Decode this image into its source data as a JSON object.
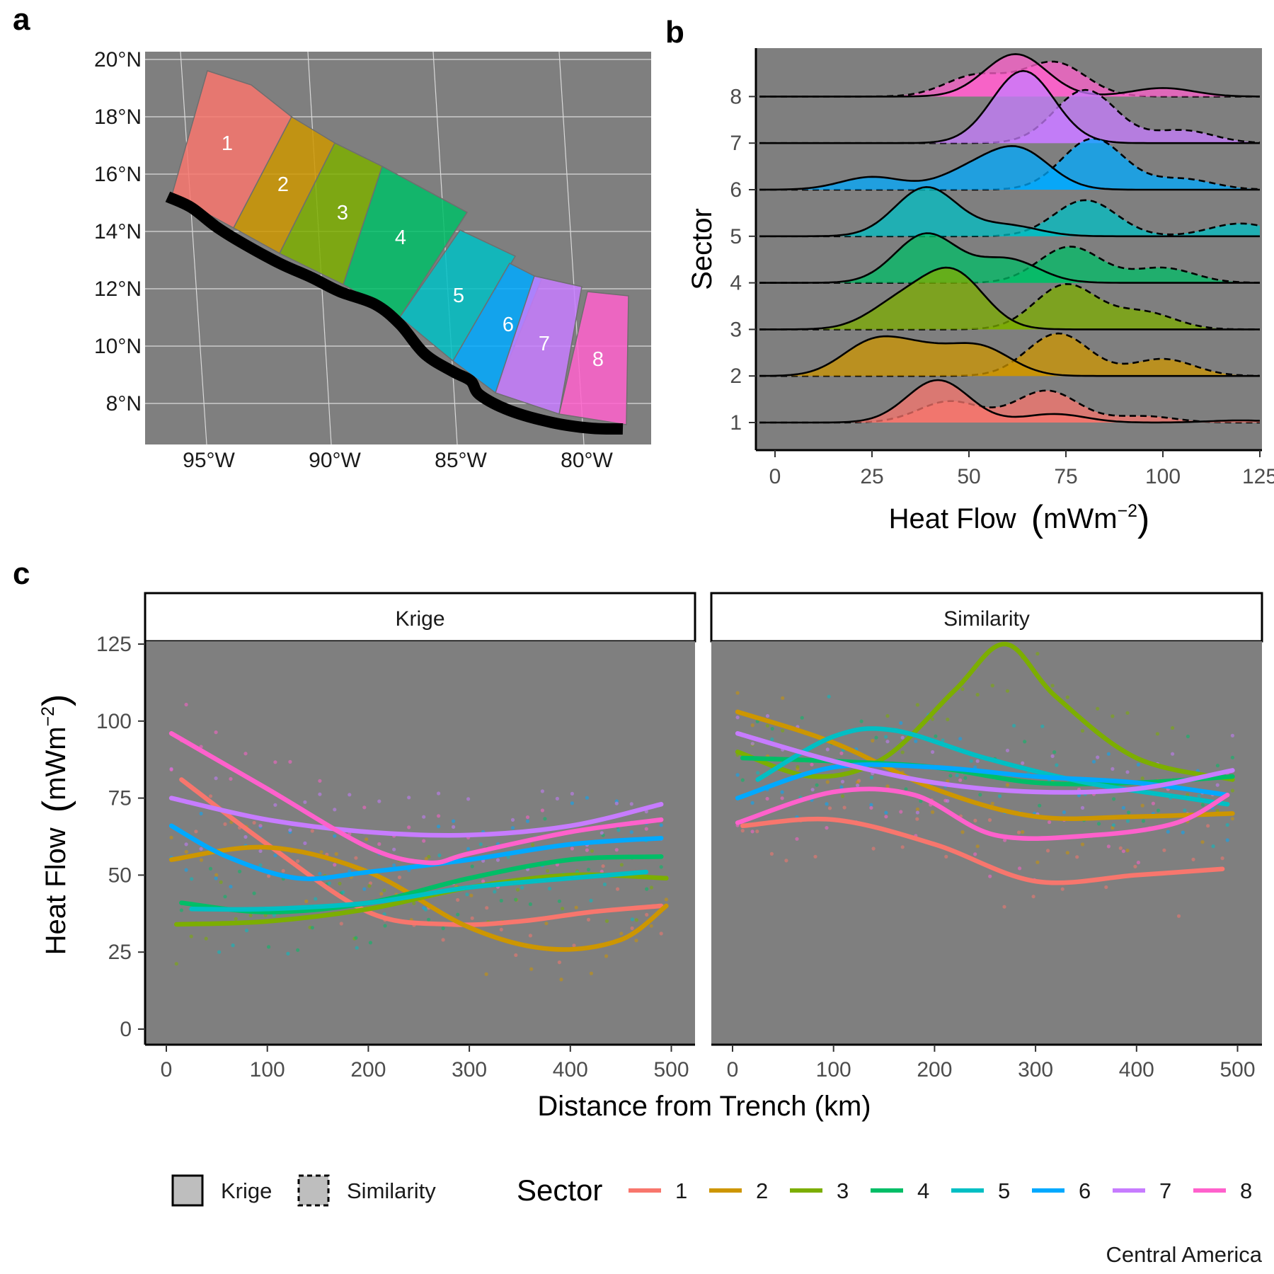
{
  "panels": {
    "a": "a",
    "b": "b",
    "c": "c"
  },
  "caption": "Central America",
  "colors": {
    "panel_bg": "#7f7f7f",
    "grid": "#d9d9d9",
    "trench": "#000000",
    "sectors": [
      "#f8766d",
      "#cd9600",
      "#7cae00",
      "#00be67",
      "#00bfc4",
      "#00a9ff",
      "#c77cff",
      "#ff61cc"
    ]
  },
  "map": {
    "lat_labels": [
      "20°N",
      "18°N",
      "16°N",
      "14°N",
      "12°N",
      "10°N",
      "8°N"
    ],
    "lon_labels": [
      "95°W",
      "90°W",
      "85°W",
      "80°W"
    ],
    "sector_labels": [
      "1",
      "2",
      "3",
      "4",
      "5",
      "6",
      "7",
      "8"
    ]
  },
  "chart_data": [
    {
      "panel": "b",
      "type": "ridgeline-density",
      "xlabel": "Heat Flow",
      "xlabel_units": "mWm",
      "xlabel_exp": "−2",
      "ylabel": "Sector",
      "xlim": [
        0,
        125
      ],
      "x_ticks": [
        "0",
        "25",
        "50",
        "75",
        "100",
        "125"
      ],
      "categories": [
        "1",
        "2",
        "3",
        "4",
        "5",
        "6",
        "7",
        "8"
      ],
      "line_styles": {
        "Krige": "solid",
        "Similarity": "dashed"
      },
      "series": [
        {
          "sector": "1",
          "krige_peaks": [
            [
              42,
              1.0
            ],
            [
              72,
              0.2
            ],
            [
              120,
              0.05
            ]
          ],
          "similarity_peaks": [
            [
              45,
              0.5
            ],
            [
              70,
              0.75
            ],
            [
              95,
              0.15
            ]
          ]
        },
        {
          "sector": "2",
          "krige_peaks": [
            [
              25,
              0.75
            ],
            [
              38,
              0.5
            ],
            [
              53,
              0.65
            ]
          ],
          "similarity_peaks": [
            [
              73,
              1.0
            ],
            [
              100,
              0.4
            ]
          ]
        },
        {
          "sector": "3",
          "krige_peaks": [
            [
              32,
              0.6
            ],
            [
              46,
              1.3
            ]
          ],
          "similarity_peaks": [
            [
              75,
              1.05
            ],
            [
              95,
              0.4
            ]
          ]
        },
        {
          "sector": "4",
          "krige_peaks": [
            [
              39,
              1.15
            ],
            [
              60,
              0.55
            ]
          ],
          "similarity_peaks": [
            [
              76,
              0.85
            ],
            [
              100,
              0.35
            ]
          ]
        },
        {
          "sector": "5",
          "krige_peaks": [
            [
              39,
              1.15
            ],
            [
              60,
              0.25
            ]
          ],
          "similarity_peaks": [
            [
              80,
              0.85
            ],
            [
              120,
              0.3
            ]
          ]
        },
        {
          "sector": "6",
          "krige_peaks": [
            [
              25,
              0.3
            ],
            [
              50,
              0.4
            ],
            [
              63,
              0.9
            ]
          ],
          "similarity_peaks": [
            [
              82,
              1.2
            ],
            [
              105,
              0.25
            ]
          ]
        },
        {
          "sector": "7",
          "krige_peaks": [
            [
              64,
              1.7
            ]
          ],
          "similarity_peaks": [
            [
              80,
              1.25
            ],
            [
              105,
              0.3
            ]
          ]
        },
        {
          "sector": "8",
          "krige_peaks": [
            [
              62,
              1.0
            ],
            [
              100,
              0.2
            ]
          ],
          "similarity_peaks": [
            [
              52,
              0.5
            ],
            [
              72,
              0.8
            ]
          ]
        }
      ]
    },
    {
      "panel": "c",
      "type": "line",
      "xlabel": "Distance from Trench (km)",
      "ylabel": "Heat Flow",
      "ylabel_units": "mWm",
      "ylabel_exp": "−2",
      "xlim": [
        -20,
        520
      ],
      "ylim": [
        -7,
        140
      ],
      "x_ticks": [
        "0",
        "100",
        "200",
        "300",
        "400",
        "500"
      ],
      "y_ticks": [
        "0",
        "25",
        "50",
        "75",
        "100",
        "125"
      ],
      "facets": [
        {
          "name": "Krige",
          "series": [
            {
              "name": "1",
              "x": [
                15,
                100,
                200,
                280,
                350,
                420,
                490
              ],
              "y": [
                81,
                60,
                38,
                34,
                35,
                38,
                40
              ]
            },
            {
              "name": "2",
              "x": [
                5,
                100,
                200,
                300,
                380,
                450,
                495
              ],
              "y": [
                55,
                59,
                51,
                33,
                26,
                29,
                40
              ]
            },
            {
              "name": "3",
              "x": [
                10,
                100,
                200,
                300,
                400,
                495
              ],
              "y": [
                34,
                35,
                39,
                46,
                50,
                49
              ]
            },
            {
              "name": "4",
              "x": [
                15,
                100,
                200,
                300,
                400,
                490
              ],
              "y": [
                41,
                38,
                41,
                49,
                55,
                56
              ]
            },
            {
              "name": "5",
              "x": [
                25,
                100,
                200,
                300,
                400,
                475
              ],
              "y": [
                39,
                39,
                41,
                46,
                49,
                51
              ]
            },
            {
              "name": "6",
              "x": [
                5,
                60,
                130,
                200,
                300,
                400,
                490
              ],
              "y": [
                66,
                56,
                49,
                51,
                55,
                60,
                62
              ]
            },
            {
              "name": "7",
              "x": [
                5,
                100,
                200,
                300,
                400,
                490
              ],
              "y": [
                75,
                68,
                64,
                63,
                66,
                73
              ]
            },
            {
              "name": "8",
              "x": [
                5,
                100,
                200,
                260,
                300,
                400,
                490
              ],
              "y": [
                96,
                78,
                59,
                54,
                57,
                64,
                68
              ]
            }
          ]
        },
        {
          "name": "Similarity",
          "series": [
            {
              "name": "1",
              "x": [
                10,
                100,
                200,
                300,
                400,
                485
              ],
              "y": [
                66,
                68,
                60,
                48,
                50,
                52
              ]
            },
            {
              "name": "2",
              "x": [
                5,
                100,
                200,
                300,
                400,
                495
              ],
              "y": [
                103,
                93,
                78,
                69,
                69,
                70
              ]
            },
            {
              "name": "3",
              "x": [
                5,
                80,
                150,
                220,
                270,
                320,
                400,
                495
              ],
              "y": [
                90,
                82,
                88,
                110,
                125,
                108,
                88,
                81
              ]
            },
            {
              "name": "4",
              "x": [
                10,
                100,
                200,
                300,
                400,
                495
              ],
              "y": [
                88,
                87,
                85,
                80,
                80,
                82
              ]
            },
            {
              "name": "5",
              "x": [
                25,
                100,
                160,
                250,
                350,
                450,
                490
              ],
              "y": [
                81,
                95,
                97,
                88,
                80,
                75,
                73
              ]
            },
            {
              "name": "6",
              "x": [
                5,
                100,
                200,
                300,
                400,
                490
              ],
              "y": [
                75,
                85,
                85,
                82,
                80,
                76
              ]
            },
            {
              "name": "7",
              "x": [
                5,
                100,
                200,
                300,
                400,
                495
              ],
              "y": [
                96,
                87,
                80,
                77,
                78,
                84
              ]
            },
            {
              "name": "8",
              "x": [
                5,
                100,
                180,
                260,
                360,
                440,
                490
              ],
              "y": [
                67,
                77,
                76,
                63,
                63,
                67,
                76
              ]
            }
          ]
        }
      ]
    }
  ],
  "legend": {
    "method_items": [
      "Krige",
      "Similarity"
    ],
    "sector_title": "Sector",
    "sector_items": [
      "1",
      "2",
      "3",
      "4",
      "5",
      "6",
      "7",
      "8"
    ]
  }
}
